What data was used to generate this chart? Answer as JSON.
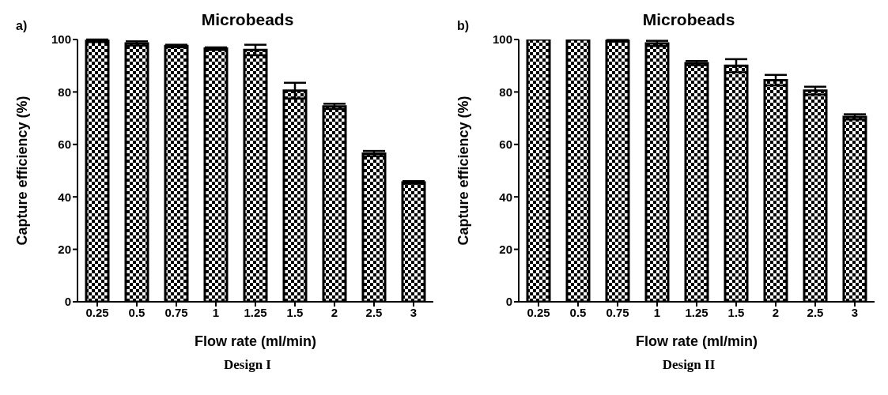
{
  "chart_data": [
    {
      "type": "bar",
      "title": "Microbeads",
      "xlabel": "Flow rate (ml/min)",
      "ylabel": "Capture efficiency (%)",
      "annotations": [
        "a)",
        "Design I"
      ],
      "categories": [
        "0.25",
        "0.5",
        "0.75",
        "1",
        "1.25",
        "1.5",
        "2",
        "2.5",
        "3"
      ],
      "values": [
        99.5,
        98.5,
        97.5,
        96.5,
        96,
        80.5,
        74.5,
        56.5,
        45.5
      ],
      "errors": [
        0.5,
        0.8,
        0.5,
        0.5,
        2,
        3,
        1,
        1,
        0.5
      ],
      "color": "#000000",
      "ylim": [
        0,
        100
      ],
      "yticks": [
        0,
        20,
        40,
        60,
        80,
        100
      ],
      "grid": false
    },
    {
      "type": "bar",
      "title": "Microbeads",
      "xlabel": "Flow rate (ml/min)",
      "ylabel": "Capture efficiency (%)",
      "annotations": [
        "b)",
        "Design II"
      ],
      "categories": [
        "0.25",
        "0.5",
        "0.75",
        "1",
        "1.25",
        "1.5",
        "2",
        "2.5",
        "3"
      ],
      "values": [
        100,
        100,
        99.5,
        98.5,
        91,
        90,
        84.5,
        80.5,
        70.5
      ],
      "errors": [
        0,
        0,
        0.3,
        1,
        0.8,
        2.5,
        2,
        1.5,
        1
      ],
      "color": "#000000",
      "ylim": [
        0,
        100
      ],
      "yticks": [
        0,
        20,
        40,
        60,
        80,
        100
      ],
      "grid": false
    }
  ]
}
